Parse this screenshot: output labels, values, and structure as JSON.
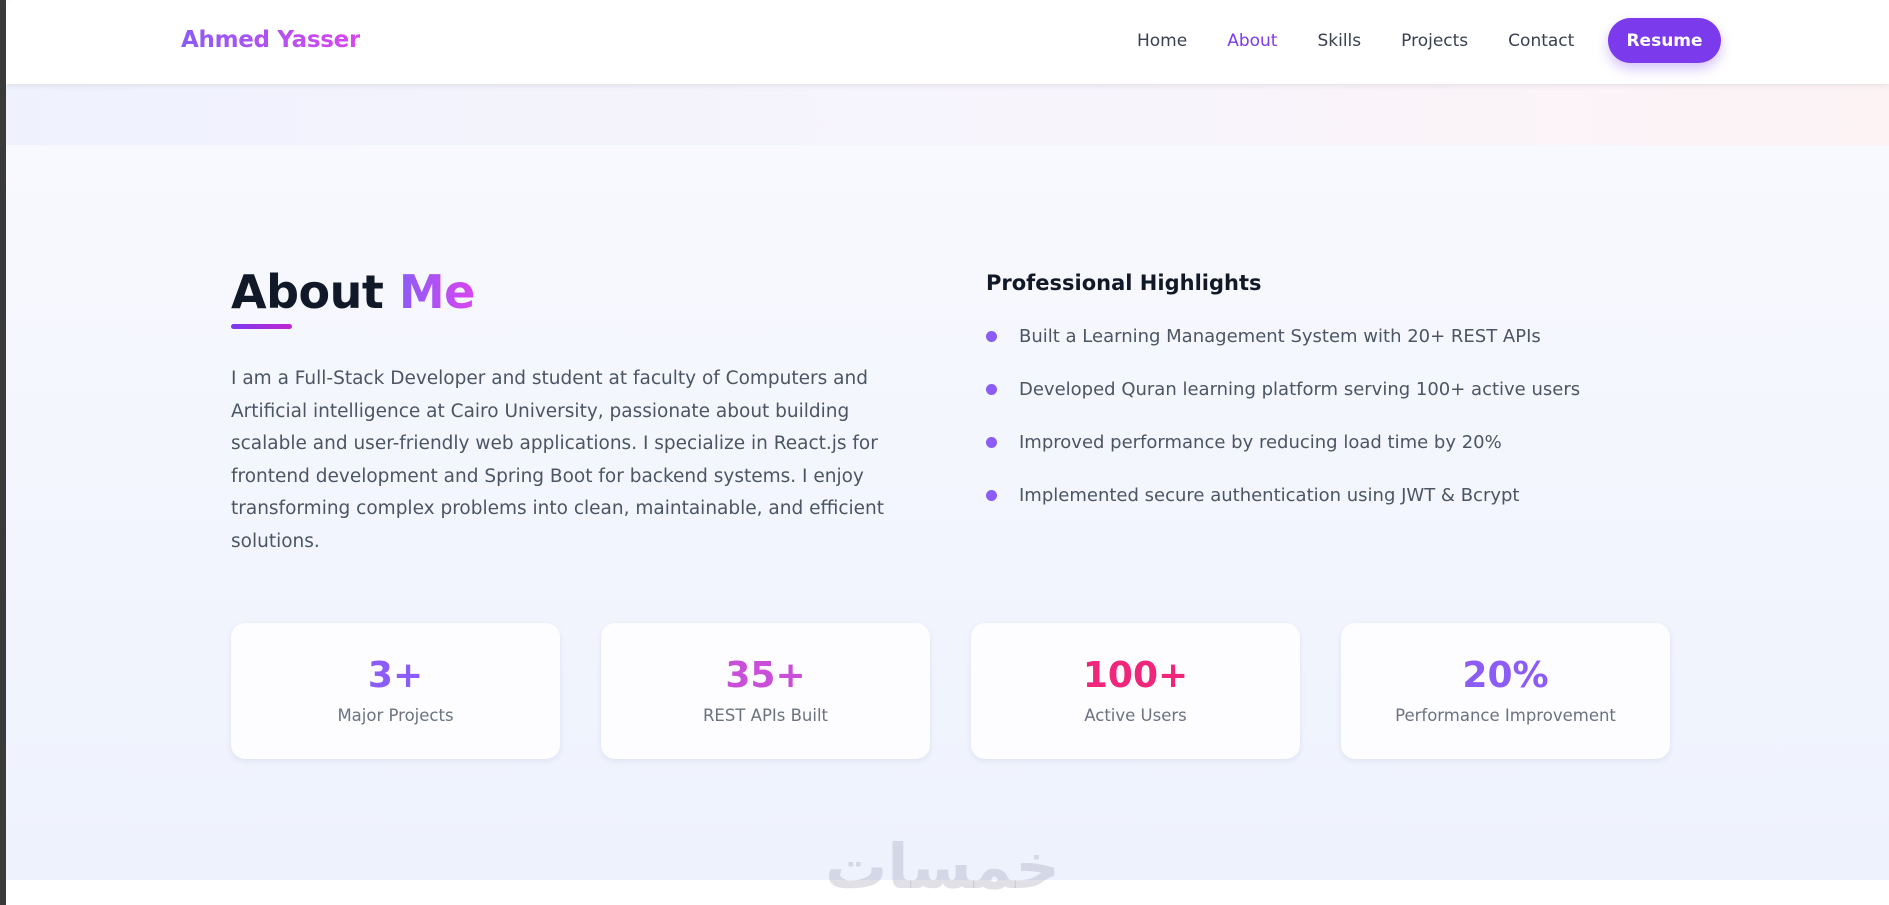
{
  "nav": {
    "logo": "Ahmed Yasser",
    "links": [
      {
        "label": "Home"
      },
      {
        "label": "About",
        "active": true
      },
      {
        "label": "Skills"
      },
      {
        "label": "Projects"
      },
      {
        "label": "Contact"
      }
    ],
    "resume": "Resume"
  },
  "about": {
    "title_a": "About",
    "title_b": "Me",
    "paragraph": "I am a Full-Stack Developer and student at faculty of Computers and Artificial intelligence at Cairo University, passionate about building scalable and user-friendly web applications. I specialize in React.js for frontend development and Spring Boot for backend systems. I enjoy transforming complex problems into clean, maintainable, and efficient solutions."
  },
  "highlights": {
    "title": "Professional Highlights",
    "items": [
      "Built a Learning Management System with 20+ REST APIs",
      "Developed Quran learning platform serving 100+ active users",
      "Improved performance by reducing load time by 20%",
      "Implemented secure authentication using JWT & Bcrypt"
    ]
  },
  "stats": [
    {
      "value": "3+",
      "label": "Major Projects",
      "color": "#8b5cf6"
    },
    {
      "value": "35+",
      "label": "REST APIs Built",
      "color": "#c94fd8"
    },
    {
      "value": "100+",
      "label": "Active Users",
      "color": "#f0267a"
    },
    {
      "value": "20%",
      "label": "Performance Improvement",
      "color": "#8b5cf6"
    }
  ],
  "watermark": "خمسات",
  "colors": {
    "accent": "#7c3aed"
  }
}
